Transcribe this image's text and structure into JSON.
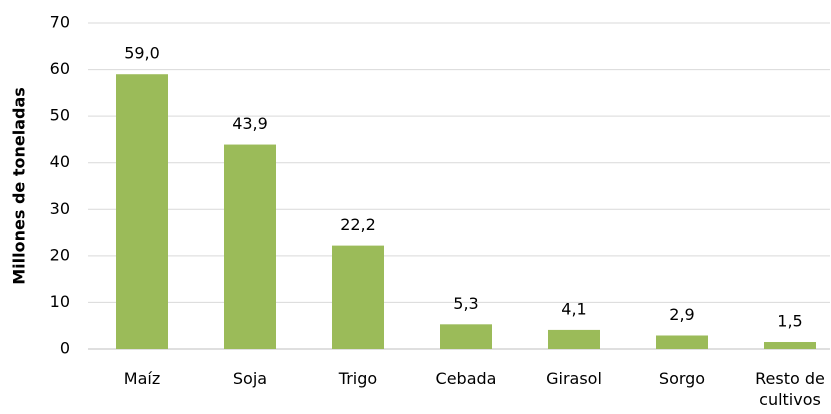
{
  "chart_data": {
    "type": "bar",
    "y_label": "Millones de toneladas",
    "categories": [
      "Maíz",
      "Soja",
      "Trigo",
      "Cebada",
      "Girasol",
      "Sorgo",
      "Resto de cultivos"
    ],
    "values": [
      59.0,
      43.9,
      22.2,
      5.3,
      4.1,
      2.9,
      1.5
    ],
    "value_labels": [
      "59,0",
      "43,9",
      "22,2",
      "5,3",
      "4,1",
      "2,9",
      "1,5"
    ],
    "color": "#9bbb59",
    "ylim": [
      0,
      70
    ],
    "yticks": [
      0,
      10,
      20,
      30,
      40,
      50,
      60,
      70
    ],
    "grid": true
  }
}
